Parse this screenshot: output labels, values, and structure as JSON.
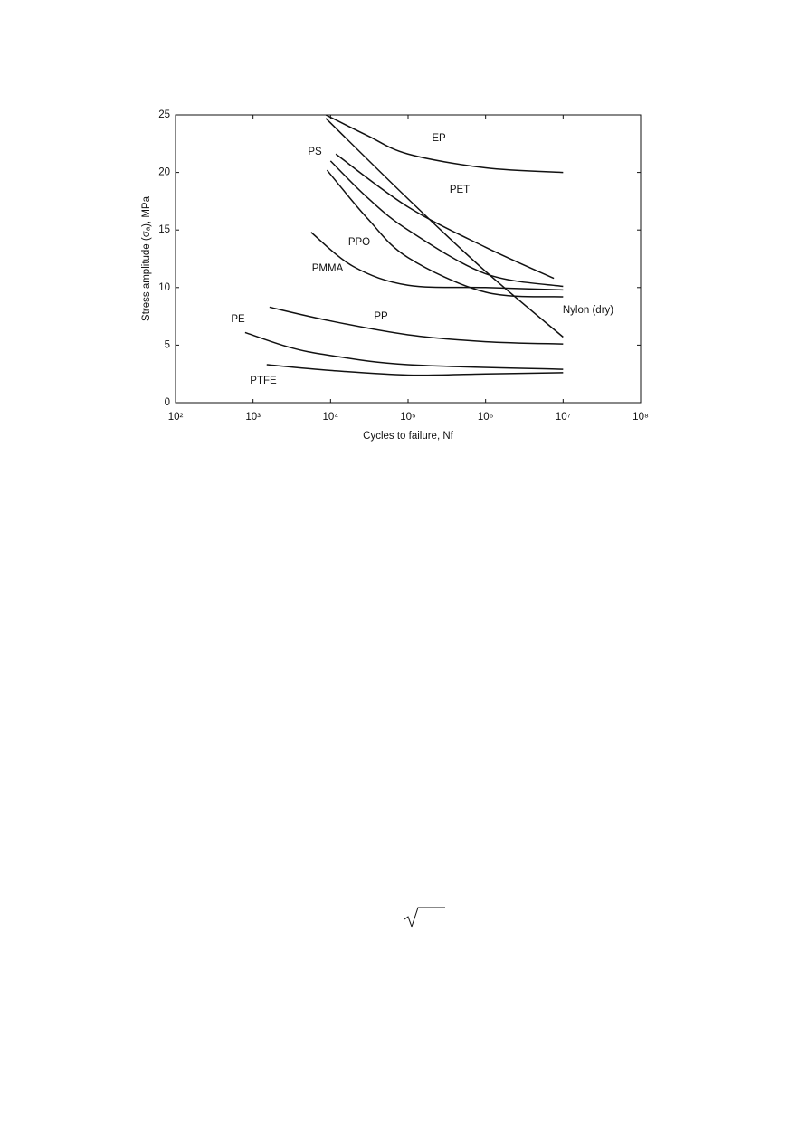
{
  "chart_data": {
    "type": "line",
    "x_label": "Cycles to failure, Nf",
    "y_label": "Stress amplitude (σₐ), MPa",
    "log_x": true,
    "grid": false,
    "color": "#111111",
    "xlim": [
      100,
      100000000
    ],
    "ylim": [
      0,
      25
    ],
    "xticks": [
      {
        "value": 100,
        "label": "10²"
      },
      {
        "value": 1000,
        "label": "10³"
      },
      {
        "value": 10000,
        "label": "10⁴"
      },
      {
        "value": 100000,
        "label": "10⁵"
      },
      {
        "value": 1000000,
        "label": "10⁶"
      },
      {
        "value": 10000000,
        "label": "10⁷"
      },
      {
        "value": 100000000,
        "label": "10⁸"
      }
    ],
    "yticks": [
      0,
      5,
      10,
      15,
      20,
      25
    ],
    "series": [
      {
        "name": "EP",
        "x": [
          8700,
          30000,
          100000,
          1000000,
          10000000
        ],
        "values": [
          25,
          23.2,
          21.6,
          20.4,
          20.0
        ]
      },
      {
        "name": "PET",
        "x": [
          11700,
          100000,
          1000000,
          7600000
        ],
        "values": [
          21.6,
          17.0,
          13.5,
          10.8
        ]
      },
      {
        "name": "PS",
        "x": [
          10000,
          30000,
          100000,
          1000000,
          10000000
        ],
        "values": [
          21.0,
          17.8,
          15.0,
          11.2,
          10.1
        ]
      },
      {
        "name": "PPO",
        "x": [
          9000,
          30000,
          100000,
          1000000,
          10000000
        ],
        "values": [
          20.2,
          16.0,
          12.6,
          9.6,
          9.2
        ]
      },
      {
        "name": "PMMA",
        "x": [
          5600,
          20000,
          100000,
          1000000,
          10000000
        ],
        "values": [
          14.8,
          11.8,
          10.2,
          10.0,
          9.8
        ]
      },
      {
        "name": "Nylon (dry)",
        "x": [
          8700,
          100000,
          1000000,
          10000000
        ],
        "values": [
          24.7,
          17.7,
          11.4,
          5.7
        ]
      },
      {
        "name": "PP",
        "x": [
          1630,
          10000,
          100000,
          1000000,
          10000000
        ],
        "values": [
          8.3,
          7.1,
          5.9,
          5.3,
          5.1
        ]
      },
      {
        "name": "PE",
        "x": [
          790,
          3000,
          10000,
          100000,
          10000000
        ],
        "values": [
          6.1,
          4.8,
          4.1,
          3.3,
          2.9
        ]
      },
      {
        "name": "PTFE",
        "x": [
          1500,
          10000,
          100000,
          1000000,
          10000000
        ],
        "values": [
          3.3,
          2.8,
          2.4,
          2.5,
          2.6
        ]
      }
    ]
  }
}
